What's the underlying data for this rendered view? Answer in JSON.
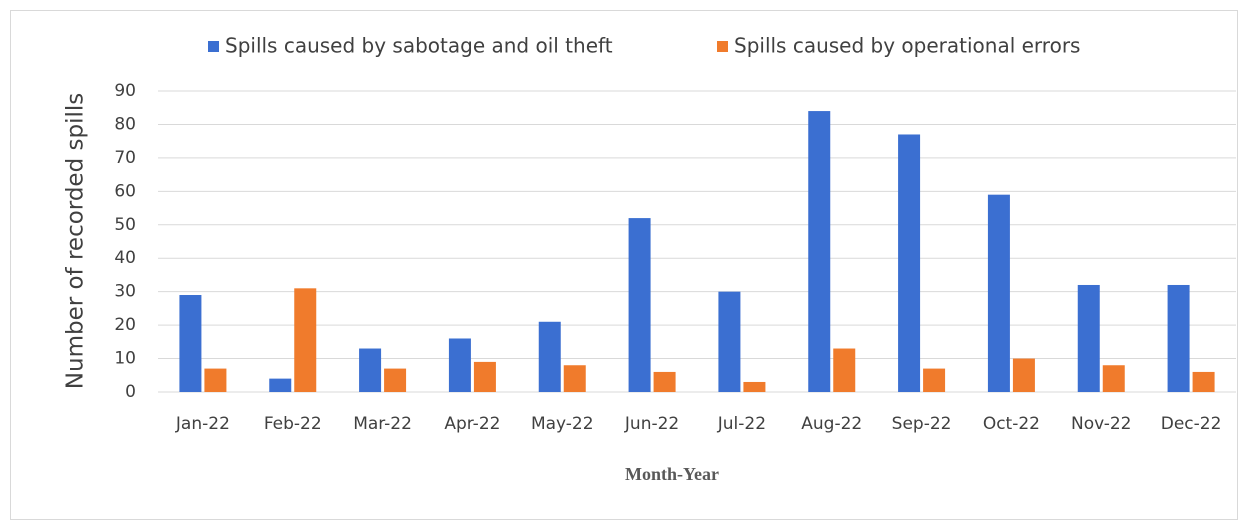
{
  "chart_data": {
    "type": "bar",
    "categories": [
      "Jan-22",
      "Feb-22",
      "Mar-22",
      "Apr-22",
      "May-22",
      "Jun-22",
      "Jul-22",
      "Aug-22",
      "Sep-22",
      "Oct-22",
      "Nov-22",
      "Dec-22"
    ],
    "series": [
      {
        "name": "Spills caused by sabotage and oil theft",
        "color": "#3b6fd1",
        "values": [
          29,
          4,
          13,
          16,
          21,
          52,
          30,
          84,
          77,
          59,
          32,
          32
        ]
      },
      {
        "name": "Spills caused by operational errors",
        "color": "#f07b2c",
        "values": [
          7,
          31,
          7,
          9,
          8,
          6,
          3,
          13,
          7,
          10,
          8,
          6
        ]
      }
    ],
    "x_label": "Month-Year",
    "y_label": "Number of recorded spills",
    "ylim": [
      0,
      90
    ],
    "yticks": [
      0,
      10,
      20,
      30,
      40,
      50,
      60,
      70,
      80,
      90
    ],
    "grid": true,
    "legend": "top"
  }
}
